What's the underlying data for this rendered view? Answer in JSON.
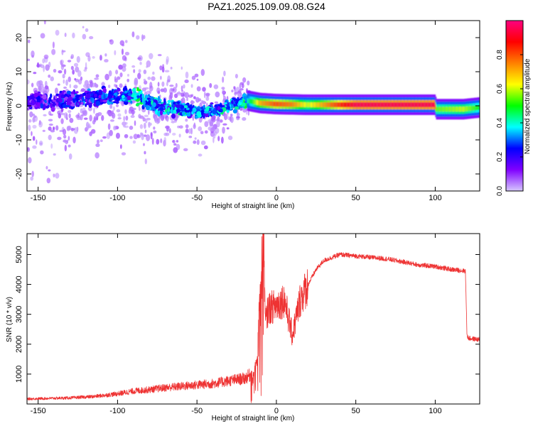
{
  "title": "PAZ1.2025.109.09.08.G24",
  "chart_data": [
    {
      "type": "heatmap",
      "xlabel": "Height of straight line (km)",
      "ylabel": "Frequency (Hz)",
      "xlim": [
        -157,
        128
      ],
      "ylim": [
        -25,
        25
      ],
      "xticks": [
        -150,
        -100,
        -50,
        0,
        50,
        100
      ],
      "xticklabels": [
        "-150",
        "-100",
        "-50",
        "0",
        "50",
        "100"
      ],
      "yticks": [
        -20,
        -10,
        0,
        10,
        20
      ],
      "yticklabels": [
        "-20",
        "-10",
        "0",
        "10",
        "20"
      ],
      "colorbar": {
        "label": "Normalized spectral amplitude",
        "range": [
          0,
          1
        ],
        "ticks": [
          0.0,
          0.2,
          0.4,
          0.6,
          0.8
        ],
        "ticklabels": [
          "0.0",
          "0.2",
          "0.4",
          "0.6",
          "0.8"
        ],
        "colormap": [
          "#d6c8ff",
          "#8000ff",
          "#0000ff",
          "#00ffff",
          "#00ff00",
          "#ffff00",
          "#ff8000",
          "#ff0000",
          "#ff0080"
        ]
      },
      "ridge": {
        "x": [
          -157,
          -130,
          -100,
          -90,
          -75,
          -60,
          -45,
          -30,
          -18,
          -10,
          0,
          10,
          20,
          50,
          100,
          101,
          118,
          128
        ],
        "frequency_hz": [
          1,
          1.5,
          3,
          3,
          0,
          -1,
          -2,
          0,
          1.5,
          0.8,
          0.5,
          0.4,
          0.3,
          0.3,
          0.3,
          -1,
          -1,
          -0.5
        ],
        "amplitude": [
          0.15,
          0.2,
          0.25,
          0.35,
          0.3,
          0.3,
          0.3,
          0.3,
          0.4,
          0.7,
          0.8,
          0.75,
          0.6,
          0.95,
          0.95,
          0.55,
          0.6,
          0.5
        ]
      },
      "grid": false
    },
    {
      "type": "line",
      "xlabel": "Height of straight line (km)",
      "ylabel": "SNR (10 * v/v)",
      "xlim": [
        -157,
        128
      ],
      "ylim": [
        0,
        5700
      ],
      "xticks": [
        -150,
        -100,
        -50,
        0,
        50,
        100
      ],
      "xticklabels": [
        "-150",
        "-100",
        "-50",
        "0",
        "50",
        "100"
      ],
      "yticks": [
        1000,
        2000,
        3000,
        4000,
        5000
      ],
      "yticklabels": [
        "1000",
        "2000",
        "3000",
        "4000",
        "5000"
      ],
      "color": "#ee3333",
      "envelope": {
        "x": [
          -157,
          -130,
          -115,
          -100,
          -90,
          -80,
          -70,
          -60,
          -50,
          -40,
          -30,
          -20,
          -15,
          -12,
          -10,
          -8,
          -7,
          -5,
          0,
          5,
          10,
          15,
          20,
          25,
          30,
          35,
          40,
          50,
          60,
          70,
          80,
          90,
          100,
          110,
          119,
          120,
          121,
          128
        ],
        "y": [
          150,
          180,
          220,
          300,
          380,
          420,
          480,
          520,
          560,
          600,
          680,
          750,
          900,
          1500,
          4500,
          5700,
          2700,
          3200,
          3300,
          3500,
          2300,
          3500,
          4000,
          4500,
          4800,
          4900,
          5000,
          4950,
          4900,
          4850,
          4750,
          4650,
          4600,
          4500,
          4450,
          2300,
          2200,
          2150
        ]
      },
      "grid": false
    }
  ]
}
